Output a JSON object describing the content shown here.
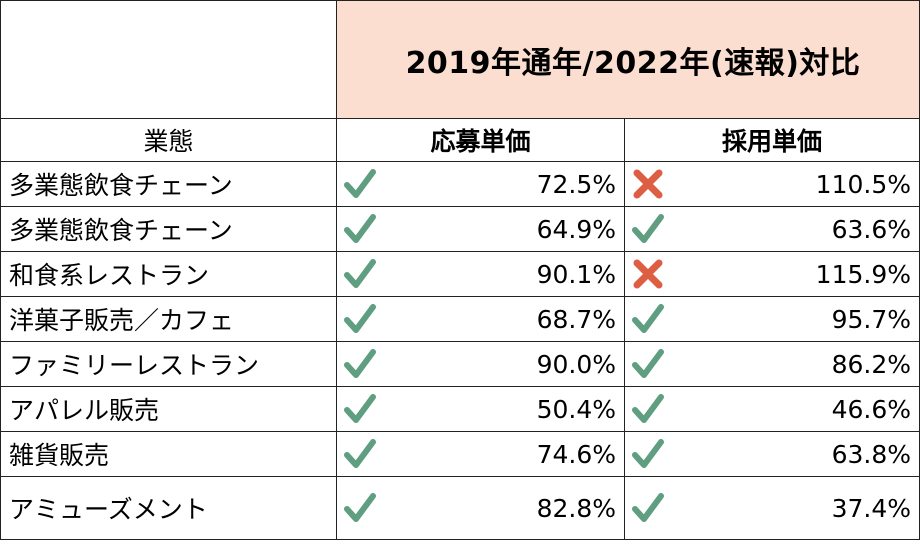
{
  "header": {
    "comparison_title": "2019年通年/2022年(速報)対比",
    "col_business_type": "業態",
    "col_application_unit_price": "応募単価",
    "col_hiring_unit_price": "採用単価"
  },
  "rows": [
    {
      "type": "多業態飲食チェーン",
      "application": "72.5%",
      "application_mark": "check-icon",
      "hiring": "110.5%",
      "hiring_mark": "cross-icon"
    },
    {
      "type": "多業態飲食チェーン",
      "application": "64.9%",
      "application_mark": "check-icon",
      "hiring": "63.6%",
      "hiring_mark": "check-icon"
    },
    {
      "type": "和食系レストラン",
      "application": "90.1%",
      "application_mark": "check-icon",
      "hiring": "115.9%",
      "hiring_mark": "cross-icon"
    },
    {
      "type": "洋菓子販売／カフェ",
      "application": "68.7%",
      "application_mark": "check-icon",
      "hiring": "95.7%",
      "hiring_mark": "check-icon"
    },
    {
      "type": "ファミリーレストラン",
      "application": "90.0%",
      "application_mark": "check-icon",
      "hiring": "86.2%",
      "hiring_mark": "check-icon"
    },
    {
      "type": "アパレル販売",
      "application": "50.4%",
      "application_mark": "check-icon",
      "hiring": "46.6%",
      "hiring_mark": "check-icon"
    },
    {
      "type": "雑貨販売",
      "application": "74.6%",
      "application_mark": "check-icon",
      "hiring": "63.8%",
      "hiring_mark": "check-icon"
    },
    {
      "type": "アミューズメント",
      "application": "82.8%",
      "application_mark": "check-icon",
      "hiring": "37.4%",
      "hiring_mark": "check-icon"
    }
  ],
  "colors": {
    "check": "#5f9e80",
    "cross": "#dd5f43",
    "title_fill": "#fcded0"
  }
}
